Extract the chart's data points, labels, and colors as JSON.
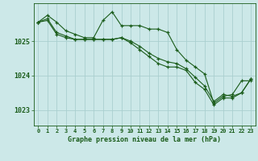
{
  "title": "Graphe pression niveau de la mer (hPa)",
  "background_color": "#cce8e8",
  "grid_color": "#aacfcf",
  "line_color": "#1a5c1a",
  "xlim": [
    -0.5,
    23.5
  ],
  "ylim": [
    1022.55,
    1026.1
  ],
  "yticks": [
    1023,
    1024,
    1025
  ],
  "xticks": [
    0,
    1,
    2,
    3,
    4,
    5,
    6,
    7,
    8,
    9,
    10,
    11,
    12,
    13,
    14,
    15,
    16,
    17,
    18,
    19,
    20,
    21,
    22,
    23
  ],
  "series": [
    [
      1025.55,
      1025.75,
      1025.55,
      1025.3,
      1025.2,
      1025.1,
      1025.1,
      1025.6,
      1025.85,
      1025.45,
      1025.45,
      1025.45,
      1025.35,
      1025.35,
      1025.25,
      1024.75,
      1024.45,
      1024.25,
      1024.05,
      1023.2,
      1023.4,
      1023.45,
      1023.85,
      1023.85
    ],
    [
      1025.55,
      1025.65,
      1025.25,
      1025.15,
      1025.05,
      1025.05,
      1025.05,
      1025.05,
      1025.05,
      1025.1,
      1025.0,
      1024.85,
      1024.65,
      1024.5,
      1024.4,
      1024.35,
      1024.2,
      1023.95,
      1023.7,
      1023.25,
      1023.45,
      1023.4,
      1023.5,
      1023.9
    ],
    [
      1025.55,
      1025.6,
      1025.2,
      1025.1,
      1025.05,
      1025.05,
      1025.05,
      1025.05,
      1025.05,
      1025.1,
      1024.95,
      1024.75,
      1024.55,
      1024.35,
      1024.25,
      1024.25,
      1024.15,
      1023.8,
      1023.6,
      1023.15,
      1023.35,
      1023.35,
      1023.5,
      1023.9
    ]
  ]
}
